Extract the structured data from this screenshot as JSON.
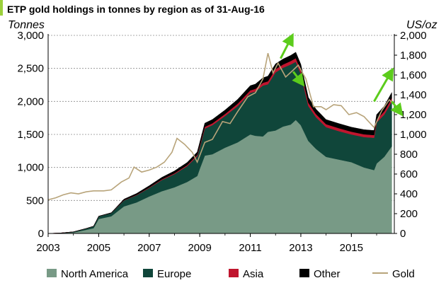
{
  "chart_data": {
    "type": "area",
    "title": "ETP gold holdings in tonnes by region as of 31-Aug-16",
    "y_left_label": "Tonnes",
    "y_right_label": "US/oz",
    "y_left_range": [
      0,
      3000
    ],
    "y_right_range": [
      0,
      2000
    ],
    "x_range": [
      2003,
      2016.7
    ],
    "x_ticks": [
      "2003",
      "2005",
      "2007",
      "2009",
      "2011",
      "2013",
      "2015"
    ],
    "y_left_ticks": [
      "0",
      "500",
      "1,000",
      "1,500",
      "2,000",
      "2,500",
      "3,000"
    ],
    "y_right_ticks": [
      "0",
      "200",
      "400",
      "600",
      "800",
      "1,000",
      "1,200",
      "1,400",
      "1,600",
      "1,800",
      "2,000"
    ],
    "grid": true,
    "legend_position": "bottom",
    "x": [
      2003.0,
      2003.5,
      2004.0,
      2004.5,
      2004.8,
      2005.0,
      2005.5,
      2006.0,
      2006.5,
      2007.0,
      2007.5,
      2008.0,
      2008.5,
      2008.9,
      2009.0,
      2009.2,
      2009.5,
      2010.0,
      2010.5,
      2011.0,
      2011.2,
      2011.5,
      2011.7,
      2012.0,
      2012.3,
      2012.6,
      2012.8,
      2013.0,
      2013.3,
      2013.6,
      2014.0,
      2014.5,
      2015.0,
      2015.5,
      2015.9,
      2016.0,
      2016.3,
      2016.6
    ],
    "series": [
      {
        "name": "North America",
        "color": "#789a86",
        "values": [
          0,
          5,
          15,
          55,
          80,
          220,
          260,
          410,
          470,
          560,
          640,
          700,
          780,
          870,
          980,
          1180,
          1200,
          1300,
          1380,
          1500,
          1480,
          1470,
          1540,
          1560,
          1620,
          1650,
          1720,
          1640,
          1400,
          1280,
          1160,
          1120,
          1080,
          1000,
          960,
          1060,
          1160,
          1320
        ]
      },
      {
        "name": "Europe",
        "color": "#10463a",
        "values": [
          0,
          2,
          10,
          20,
          30,
          40,
          50,
          90,
          110,
          130,
          170,
          200,
          240,
          300,
          330,
          410,
          440,
          480,
          550,
          630,
          670,
          770,
          720,
          880,
          890,
          910,
          880,
          780,
          530,
          480,
          450,
          430,
          420,
          460,
          490,
          620,
          640,
          680
        ]
      },
      {
        "name": "Asia",
        "color": "#c0152e",
        "values": [
          0,
          0,
          0,
          0,
          0,
          0,
          0,
          5,
          5,
          8,
          10,
          12,
          15,
          18,
          20,
          25,
          28,
          30,
          35,
          38,
          40,
          42,
          45,
          48,
          50,
          52,
          55,
          55,
          50,
          48,
          45,
          45,
          42,
          42,
          40,
          45,
          48,
          50
        ]
      },
      {
        "name": "Other",
        "color": "#000000",
        "values": [
          0,
          0,
          0,
          0,
          0,
          2,
          5,
          15,
          20,
          25,
          30,
          35,
          40,
          45,
          50,
          55,
          58,
          60,
          65,
          70,
          72,
          75,
          78,
          80,
          82,
          85,
          90,
          88,
          80,
          75,
          70,
          70,
          68,
          70,
          70,
          75,
          80,
          85
        ]
      }
    ],
    "gold": {
      "name": "Gold",
      "color": "#b8a47a",
      "x": [
        2003.0,
        2003.3,
        2003.6,
        2003.9,
        2004.2,
        2004.5,
        2004.8,
        2005.2,
        2005.5,
        2005.9,
        2006.2,
        2006.4,
        2006.7,
        2007.0,
        2007.3,
        2007.6,
        2007.9,
        2008.1,
        2008.4,
        2008.7,
        2008.9,
        2009.2,
        2009.5,
        2009.9,
        2010.2,
        2010.5,
        2010.9,
        2011.2,
        2011.5,
        2011.7,
        2011.9,
        2012.1,
        2012.4,
        2012.7,
        2012.9,
        2013.2,
        2013.5,
        2013.8,
        2014.0,
        2014.3,
        2014.6,
        2014.9,
        2015.2,
        2015.5,
        2015.9,
        2016.2,
        2016.5,
        2016.65
      ],
      "values": [
        340,
        360,
        390,
        410,
        400,
        420,
        430,
        430,
        440,
        520,
        560,
        670,
        620,
        640,
        670,
        720,
        820,
        960,
        900,
        820,
        720,
        920,
        950,
        1130,
        1110,
        1230,
        1380,
        1420,
        1560,
        1820,
        1620,
        1720,
        1580,
        1650,
        1700,
        1560,
        1280,
        1280,
        1250,
        1300,
        1290,
        1200,
        1220,
        1180,
        1070,
        1240,
        1350,
        1310
      ]
    },
    "annotations": [
      "up-arrow",
      "down-arrow",
      "up-arrow",
      "down-arrow"
    ]
  }
}
